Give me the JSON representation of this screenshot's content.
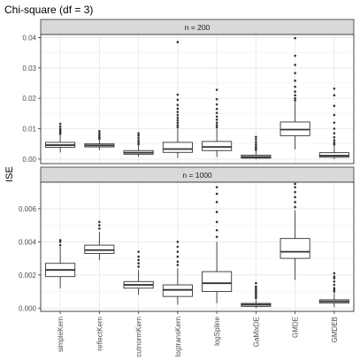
{
  "chart_data": {
    "type": "boxplot",
    "title": "Chi-square (df = 3)",
    "ylabel": "ISE",
    "xlabel": "",
    "categories": [
      "simpleKern",
      "reflectKern",
      "cutnormKern",
      "logtransKern",
      "logSpline",
      "GaMixDE",
      "GMDE",
      "GMDEB"
    ],
    "grid": true,
    "panels": [
      {
        "strip": "n = 200",
        "ylim": [
          -0.0015,
          0.041
        ],
        "yticks": [
          0.0,
          0.01,
          0.02,
          0.03,
          0.04
        ],
        "ytick_labels": [
          "0.00",
          "0.01",
          "0.02",
          "0.03",
          "0.04"
        ],
        "boxes": [
          {
            "category": "simpleKern",
            "q1": 0.0039,
            "median": 0.0046,
            "q3": 0.0055,
            "whisker_low": 0.0022,
            "whisker_high": 0.0079,
            "outliers": [
              0.0083,
              0.0088,
              0.0093,
              0.0099,
              0.0107,
              0.0116
            ]
          },
          {
            "category": "reflectKern",
            "q1": 0.004,
            "median": 0.0045,
            "q3": 0.005,
            "whisker_low": 0.003,
            "whisker_high": 0.0064,
            "outliers": [
              0.0067,
              0.0072,
              0.0078,
              0.0085,
              0.0092
            ]
          },
          {
            "category": "cutnormKern",
            "q1": 0.0016,
            "median": 0.0021,
            "q3": 0.0028,
            "whisker_low": 0.0008,
            "whisker_high": 0.0046,
            "outliers": [
              0.0049,
              0.0055,
              0.0062,
              0.007,
              0.0078,
              0.0085
            ]
          },
          {
            "category": "logtransKern",
            "q1": 0.0022,
            "median": 0.0033,
            "q3": 0.0055,
            "whisker_low": 0.0004,
            "whisker_high": 0.01,
            "outliers": [
              0.0105,
              0.0112,
              0.012,
              0.0128,
              0.0136,
              0.0145,
              0.0155,
              0.0166,
              0.0178,
              0.0195,
              0.0212,
              0.0385
            ]
          },
          {
            "category": "logSpline",
            "q1": 0.0028,
            "median": 0.004,
            "q3": 0.0058,
            "whisker_low": 0.0007,
            "whisker_high": 0.01,
            "outliers": [
              0.0105,
              0.0112,
              0.012,
              0.013,
              0.014,
              0.0152,
              0.0165,
              0.018,
              0.0197,
              0.0228
            ]
          },
          {
            "category": "GaMixDE",
            "q1": 0.0003,
            "median": 0.0007,
            "q3": 0.0013,
            "whisker_low": 0.0,
            "whisker_high": 0.0027,
            "outliers": [
              0.003,
              0.0035,
              0.0041,
              0.0048,
              0.0056,
              0.0065,
              0.0073
            ]
          },
          {
            "category": "GMDE",
            "q1": 0.0077,
            "median": 0.0097,
            "q3": 0.0122,
            "whisker_low": 0.0032,
            "whisker_high": 0.0188,
            "outliers": [
              0.0193,
              0.02,
              0.021,
              0.0222,
              0.0238,
              0.0258,
              0.0283,
              0.031,
              0.034,
              0.0398
            ]
          },
          {
            "category": "GMDEB",
            "q1": 0.0006,
            "median": 0.0011,
            "q3": 0.0021,
            "whisker_low": 0.0,
            "whisker_high": 0.0044,
            "outliers": [
              0.0048,
              0.0054,
              0.0062,
              0.0072,
              0.0085,
              0.01,
              0.012,
              0.0145,
              0.0175,
              0.021,
              0.0232
            ]
          }
        ]
      },
      {
        "strip": "n = 1000",
        "ylim": [
          -0.0002,
          0.0076
        ],
        "yticks": [
          0.0,
          0.002,
          0.004,
          0.006
        ],
        "ytick_labels": [
          "0.000",
          "0.002",
          "0.004",
          "0.006"
        ],
        "boxes": [
          {
            "category": "simpleKern",
            "q1": 0.0019,
            "median": 0.0023,
            "q3": 0.0027,
            "whisker_low": 0.0012,
            "whisker_high": 0.0037,
            "outliers": [
              0.0038,
              0.004,
              0.0041
            ]
          },
          {
            "category": "reflectKern",
            "q1": 0.0033,
            "median": 0.0035,
            "q3": 0.0038,
            "whisker_low": 0.0029,
            "whisker_high": 0.0046,
            "outliers": [
              0.0048,
              0.005,
              0.0052
            ]
          },
          {
            "category": "cutnormKern",
            "q1": 0.0012,
            "median": 0.0014,
            "q3": 0.0016,
            "whisker_low": 0.0008,
            "whisker_high": 0.0023,
            "outliers": [
              0.0025,
              0.0027,
              0.0029,
              0.0031,
              0.0034
            ]
          },
          {
            "category": "logtransKern",
            "q1": 0.0007,
            "median": 0.0011,
            "q3": 0.0014,
            "whisker_low": 0.0002,
            "whisker_high": 0.0024,
            "outliers": [
              0.0026,
              0.0028,
              0.0031,
              0.0034,
              0.0037,
              0.004
            ]
          },
          {
            "category": "logSpline",
            "q1": 0.001,
            "median": 0.0015,
            "q3": 0.0022,
            "whisker_low": 0.0003,
            "whisker_high": 0.004,
            "outliers": [
              0.0043,
              0.0047,
              0.0052,
              0.0058,
              0.0064,
              0.0069,
              0.0073
            ]
          },
          {
            "category": "GaMixDE",
            "q1": 0.0001,
            "median": 0.0002,
            "q3": 0.00028,
            "whisker_low": 0.0,
            "whisker_high": 0.0005,
            "outliers": [
              0.0006,
              0.0007,
              0.0008,
              0.0009,
              0.001,
              0.0011,
              0.0012,
              0.0013,
              0.0015
            ]
          },
          {
            "category": "GMDE",
            "q1": 0.003,
            "median": 0.0034,
            "q3": 0.0042,
            "whisker_low": 0.0017,
            "whisker_high": 0.0059,
            "outliers": [
              0.0061,
              0.0064,
              0.0067,
              0.007,
              0.0073,
              0.0075
            ]
          },
          {
            "category": "GMDEB",
            "q1": 0.0003,
            "median": 0.0004,
            "q3": 0.0005,
            "whisker_low": 5e-05,
            "whisker_high": 0.0009,
            "outliers": [
              0.001,
              0.0011,
              0.0012,
              0.0014,
              0.0016,
              0.0018,
              0.0019,
              0.0021
            ]
          }
        ]
      }
    ]
  }
}
